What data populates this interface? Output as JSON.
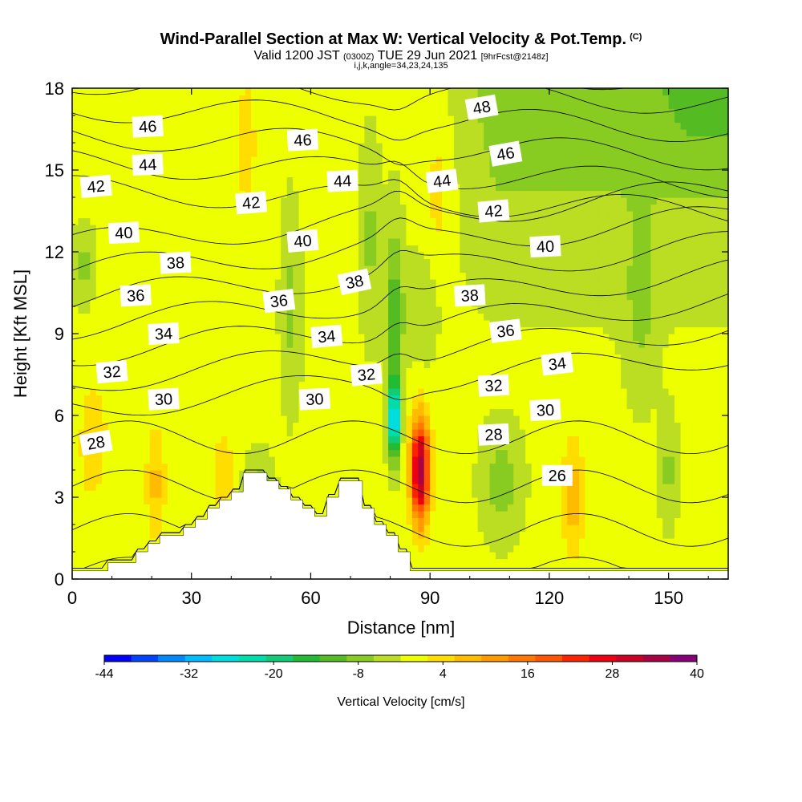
{
  "header": {
    "title": "Wind-Parallel Section at Max W: Vertical Velocity & Pot.Temp.",
    "title_mark": "(C)",
    "subtitle_prefix": "Valid 1200 JST",
    "subtitle_utc": "(0300Z)",
    "subtitle_date": "TUE 29 Jun 2021",
    "subtitle_fcst": "[9hrFcst@2148z]",
    "subtitle_line2": "i,j,k,angle=34,23,24,135"
  },
  "chart_data": {
    "type": "heatmap",
    "xlabel": "Distance [nm]",
    "ylabel": "Height [Kft MSL]",
    "xlim": [
      0,
      165
    ],
    "ylim": [
      0,
      18
    ],
    "x_ticks": [
      "0",
      "30",
      "60",
      "90",
      "120",
      "150"
    ],
    "y_ticks": [
      "0",
      "3",
      "6",
      "9",
      "12",
      "15",
      "18"
    ],
    "colorbar": {
      "label": "Vertical Velocity [cm/s]",
      "tick_labels": [
        "-44",
        "-32",
        "-20",
        "-8",
        "4",
        "16",
        "28",
        "40"
      ],
      "min": -44,
      "max": 40,
      "step": 4,
      "colors": [
        "#0000ff",
        "#0044ff",
        "#0088ff",
        "#00bbff",
        "#00dddd",
        "#00ddaa",
        "#11cc77",
        "#22bb33",
        "#55bb22",
        "#88cc22",
        "#bbdd22",
        "#eeff00",
        "#ffdd00",
        "#ffbb00",
        "#ff9900",
        "#ff7700",
        "#ff5500",
        "#ff2200",
        "#ee0011",
        "#cc0022",
        "#aa0044",
        "#880077"
      ]
    },
    "terrain": [
      [
        0,
        0.3
      ],
      [
        9,
        0.3
      ],
      [
        9,
        0.6
      ],
      [
        16,
        0.6
      ],
      [
        16,
        1.0
      ],
      [
        19,
        1.0
      ],
      [
        19,
        1.3
      ],
      [
        22,
        1.3
      ],
      [
        22,
        1.6
      ],
      [
        28,
        1.6
      ],
      [
        28,
        1.9
      ],
      [
        31,
        1.9
      ],
      [
        31,
        2.2
      ],
      [
        34,
        2.2
      ],
      [
        34,
        2.6
      ],
      [
        37,
        2.6
      ],
      [
        37,
        2.9
      ],
      [
        40,
        2.9
      ],
      [
        40,
        3.2
      ],
      [
        43,
        3.2
      ],
      [
        43,
        3.9
      ],
      [
        49,
        3.9
      ],
      [
        49,
        3.6
      ],
      [
        52,
        3.6
      ],
      [
        52,
        3.3
      ],
      [
        55,
        3.3
      ],
      [
        55,
        2.9
      ],
      [
        58,
        2.9
      ],
      [
        58,
        2.6
      ],
      [
        61,
        2.6
      ],
      [
        61,
        2.3
      ],
      [
        64,
        2.3
      ],
      [
        64,
        3.0
      ],
      [
        67,
        3.0
      ],
      [
        67,
        3.6
      ],
      [
        73,
        3.6
      ],
      [
        73,
        2.6
      ],
      [
        76,
        2.6
      ],
      [
        76,
        2.0
      ],
      [
        79,
        2.0
      ],
      [
        79,
        1.6
      ],
      [
        82,
        1.6
      ],
      [
        82,
        1.0
      ],
      [
        85,
        1.0
      ],
      [
        85,
        0.3
      ],
      [
        165,
        0.3
      ]
    ],
    "theta_contours": {
      "levels_min": 25,
      "levels_max": 49,
      "interval": 1,
      "labels": [
        {
          "v": "46",
          "x": 19,
          "z": 16.6,
          "rot": -3
        },
        {
          "v": "44",
          "x": 19,
          "z": 15.2,
          "rot": -3
        },
        {
          "v": "42",
          "x": 6,
          "z": 14.4,
          "rot": -5
        },
        {
          "v": "40",
          "x": 13,
          "z": 12.7,
          "rot": -3
        },
        {
          "v": "38",
          "x": 26,
          "z": 11.6,
          "rot": -3
        },
        {
          "v": "36",
          "x": 16,
          "z": 10.4,
          "rot": -3
        },
        {
          "v": "34",
          "x": 23,
          "z": 9.0,
          "rot": -3
        },
        {
          "v": "32",
          "x": 10,
          "z": 7.6,
          "rot": -5
        },
        {
          "v": "30",
          "x": 23,
          "z": 6.6,
          "rot": -3
        },
        {
          "v": "28",
          "x": 6,
          "z": 5.0,
          "rot": -10
        },
        {
          "v": "46",
          "x": 58,
          "z": 16.1,
          "rot": -3
        },
        {
          "v": "44",
          "x": 68,
          "z": 14.6,
          "rot": -3
        },
        {
          "v": "42",
          "x": 45,
          "z": 13.8,
          "rot": -5
        },
        {
          "v": "40",
          "x": 58,
          "z": 12.4,
          "rot": -5
        },
        {
          "v": "38",
          "x": 71,
          "z": 10.9,
          "rot": -12
        },
        {
          "v": "36",
          "x": 52,
          "z": 10.2,
          "rot": -7
        },
        {
          "v": "34",
          "x": 64,
          "z": 8.9,
          "rot": -5
        },
        {
          "v": "32",
          "x": 74,
          "z": 7.5,
          "rot": -5
        },
        {
          "v": "30",
          "x": 61,
          "z": 6.6,
          "rot": -3
        },
        {
          "v": "48",
          "x": 103,
          "z": 17.3,
          "rot": -10
        },
        {
          "v": "46",
          "x": 109,
          "z": 15.6,
          "rot": -10
        },
        {
          "v": "44",
          "x": 93,
          "z": 14.6,
          "rot": -7
        },
        {
          "v": "42",
          "x": 106,
          "z": 13.5,
          "rot": -5
        },
        {
          "v": "40",
          "x": 119,
          "z": 12.2,
          "rot": -3
        },
        {
          "v": "38",
          "x": 100,
          "z": 10.4,
          "rot": -3
        },
        {
          "v": "36",
          "x": 109,
          "z": 9.1,
          "rot": -7
        },
        {
          "v": "34",
          "x": 122,
          "z": 7.9,
          "rot": -7
        },
        {
          "v": "32",
          "x": 106,
          "z": 7.1,
          "rot": -3
        },
        {
          "v": "30",
          "x": 119,
          "z": 6.2,
          "rot": -3
        },
        {
          "v": "28",
          "x": 106,
          "z": 5.3,
          "rot": -3
        },
        {
          "v": "26",
          "x": 122,
          "z": 3.8,
          "rot": 0
        }
      ]
    }
  }
}
